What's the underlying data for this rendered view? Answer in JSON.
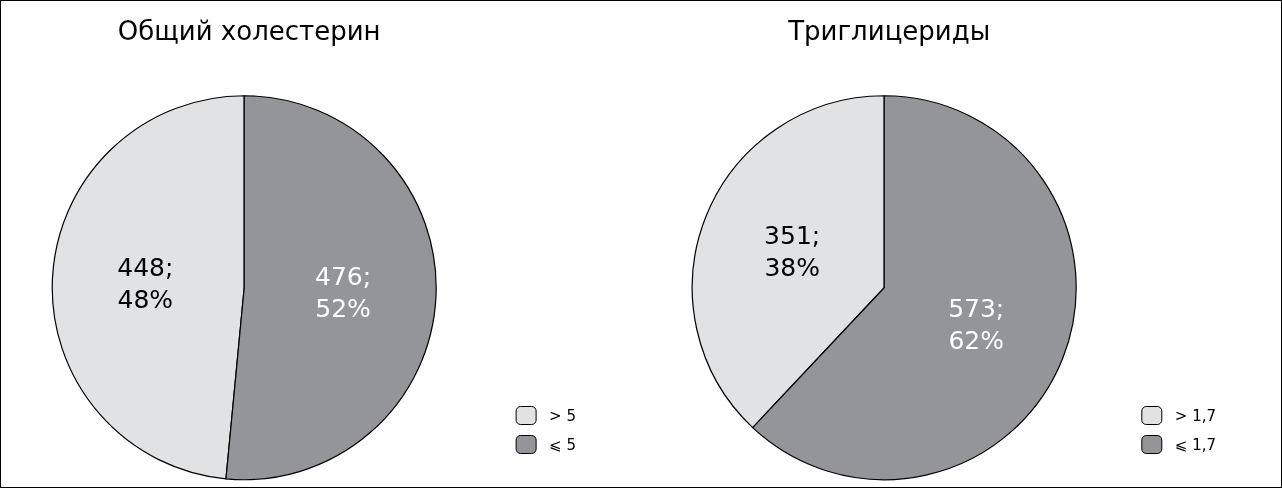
{
  "chart_data": [
    {
      "type": "pie",
      "title": "Общий холестерин",
      "categories": [
        "> 5",
        "⩽ 5"
      ],
      "values": [
        448,
        476
      ],
      "colors": [
        "#e1e2e3",
        "#939598"
      ],
      "value_labels": [
        "448;\n48%",
        "476;\n52%"
      ],
      "legend": "bottom right"
    },
    {
      "type": "pie",
      "title": "Триглицериды",
      "categories": [
        "> 1,7",
        "⩽ 1,7"
      ],
      "values": [
        351,
        573
      ],
      "colors": [
        "#e1e2e3",
        "#939598"
      ],
      "value_labels": [
        "351;\n38%",
        "573;\n62%"
      ],
      "legend": "bottom right"
    }
  ]
}
